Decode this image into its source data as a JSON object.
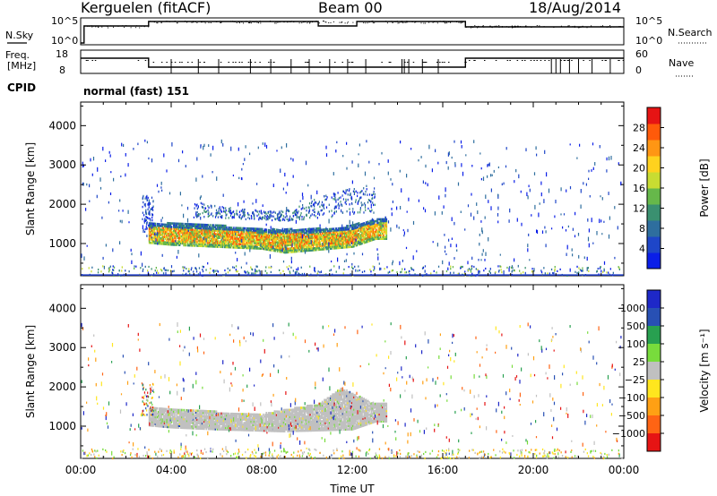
{
  "header": {
    "station": "Kerguelen (fitACF)",
    "beam": "Beam 00",
    "date": "18/Aug/2014"
  },
  "noise_panel": {
    "left_label": "N.Sky",
    "right_label": "N.Search",
    "left_ticks": [
      "10^5",
      "10^0"
    ],
    "right_ticks": [
      "10^5",
      "10^0"
    ]
  },
  "freq_panel": {
    "left_label_1": "Freq.",
    "left_label_2": "[MHz]",
    "right_label": "Nave",
    "left_ticks": [
      "18",
      "8"
    ],
    "right_ticks": [
      "60",
      "0"
    ]
  },
  "cpid": {
    "label": "CPID",
    "value": "normal (fast) 151"
  },
  "chart_data": [
    {
      "type": "heatmap",
      "name": "power",
      "ylabel": "Slant Range [km]",
      "xlabel": "",
      "xlim": [
        0,
        24
      ],
      "ylim": [
        180,
        4600
      ],
      "x_ticks": [
        "00:00",
        "04:00",
        "08:00",
        "12:00",
        "16:00",
        "20:00",
        "00:00"
      ],
      "x_tick_values": [
        0,
        4,
        8,
        12,
        16,
        20,
        24
      ],
      "y_ticks": [
        1000,
        2000,
        3000,
        4000
      ],
      "colorbar": {
        "label": "Power [dB]",
        "range": [
          0,
          32
        ],
        "ticks": [
          "4",
          "8",
          "12",
          "16",
          "20",
          "24",
          "28"
        ],
        "tick_values": [
          4,
          8,
          12,
          16,
          20,
          24,
          28
        ],
        "colors": [
          "#0a1ee8",
          "#1e46c8",
          "#2e6e9e",
          "#3a9070",
          "#66b84a",
          "#c8dc32",
          "#ffd21e",
          "#ff9614",
          "#ff5a0a",
          "#e61414"
        ]
      },
      "main_echo_band": {
        "time_start": 3.0,
        "time_end": 13.5,
        "upper_edge_km": [
          [
            3.0,
            1550
          ],
          [
            4.0,
            1550
          ],
          [
            6.0,
            1500
          ],
          [
            8.0,
            1400
          ],
          [
            10.0,
            1400
          ],
          [
            11.5,
            1450
          ],
          [
            13.5,
            1700
          ]
        ],
        "lower_edge_km": [
          [
            3.0,
            1050
          ],
          [
            4.0,
            1000
          ],
          [
            6.0,
            950
          ],
          [
            8.0,
            900
          ],
          [
            9.0,
            800
          ],
          [
            10.0,
            850
          ],
          [
            12.0,
            950
          ],
          [
            13.0,
            1150
          ]
        ],
        "core_power_db": 22
      },
      "secondary_echo_band": {
        "time_start": 5.0,
        "time_end": 13.0,
        "upper_edge_km": [
          [
            5.0,
            2100
          ],
          [
            7.0,
            1900
          ],
          [
            9.0,
            1850
          ],
          [
            11.0,
            2300
          ],
          [
            12.5,
            2500
          ]
        ],
        "lower_edge_km": [
          [
            5.0,
            1700
          ],
          [
            7.0,
            1650
          ],
          [
            9.0,
            1600
          ],
          [
            11.0,
            1700
          ],
          [
            12.5,
            1800
          ]
        ],
        "core_power_db": 6
      }
    },
    {
      "type": "heatmap",
      "name": "velocity",
      "ylabel": "Slant Range [km]",
      "xlabel": "Time UT",
      "xlim": [
        0,
        24
      ],
      "ylim": [
        180,
        4600
      ],
      "x_ticks": [
        "00:00",
        "04:00",
        "08:00",
        "12:00",
        "16:00",
        "20:00",
        "00:00"
      ],
      "x_tick_values": [
        0,
        4,
        8,
        12,
        16,
        20,
        24
      ],
      "y_ticks": [
        1000,
        2000,
        3000,
        4000
      ],
      "colorbar": {
        "label": "Velocity [m s⁻¹]",
        "ticks": [
          "1000",
          "500",
          "100",
          "25",
          "−25",
          "−100",
          "−500",
          "−1000"
        ],
        "colors": [
          "#1e28c8",
          "#2850b4",
          "#28a050",
          "#78dc3c",
          "#c0c0c0",
          "#ffe61e",
          "#ffa014",
          "#ff6414",
          "#e61414"
        ]
      },
      "ground_scatter_band": {
        "time_start": 3.0,
        "time_end": 13.5,
        "upper_edge_km": [
          [
            3.0,
            1500
          ],
          [
            4.0,
            1450
          ],
          [
            8.0,
            1350
          ],
          [
            10.5,
            1600
          ],
          [
            11.5,
            2000
          ],
          [
            13.0,
            1600
          ]
        ],
        "lower_edge_km": [
          [
            3.0,
            1050
          ],
          [
            4.0,
            1000
          ],
          [
            6.0,
            950
          ],
          [
            9.0,
            900
          ],
          [
            12.0,
            950
          ],
          [
            13.0,
            1150
          ]
        ],
        "velocity_class": "ground scatter (grey)"
      }
    }
  ],
  "colors": {
    "axis": "#000000",
    "ground_scatter": "#c0c0c0"
  }
}
